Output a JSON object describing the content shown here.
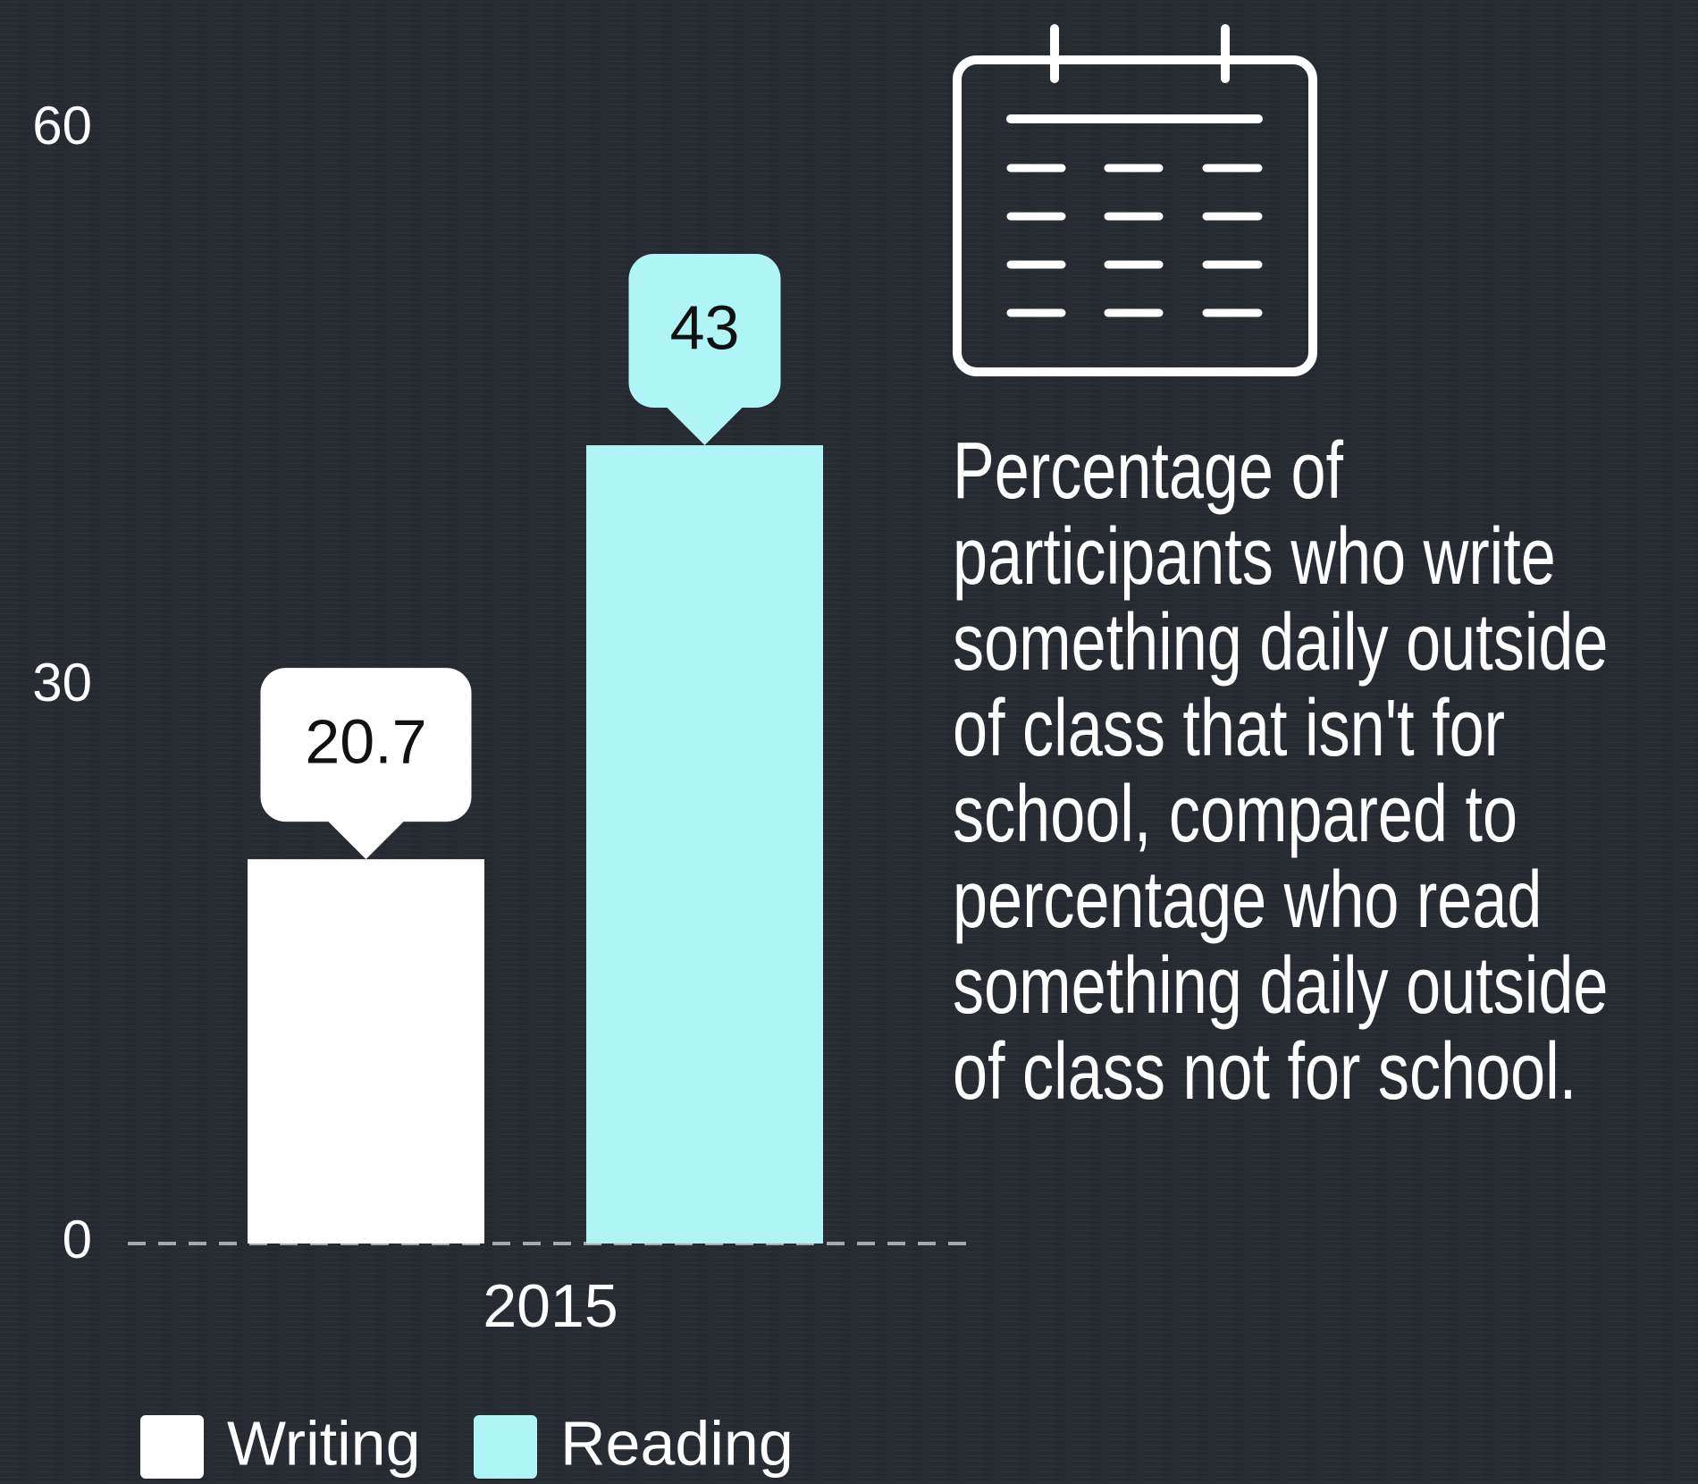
{
  "chart_data": {
    "type": "bar",
    "description_lines": [
      "Percentage of",
      "participants who write",
      "something daily outside",
      "of class that isn't for",
      "school, compared to",
      "percentage who read",
      "something daily outside",
      "of class not for school."
    ],
    "categories": [
      "2015"
    ],
    "series": [
      {
        "name": "Writing",
        "color": "#ffffff",
        "values": [
          20.7
        ]
      },
      {
        "name": "Reading",
        "color": "#b0f5f5",
        "values": [
          43
        ]
      }
    ],
    "ylim": [
      0,
      60
    ],
    "yticks": [
      0,
      30,
      60
    ]
  }
}
